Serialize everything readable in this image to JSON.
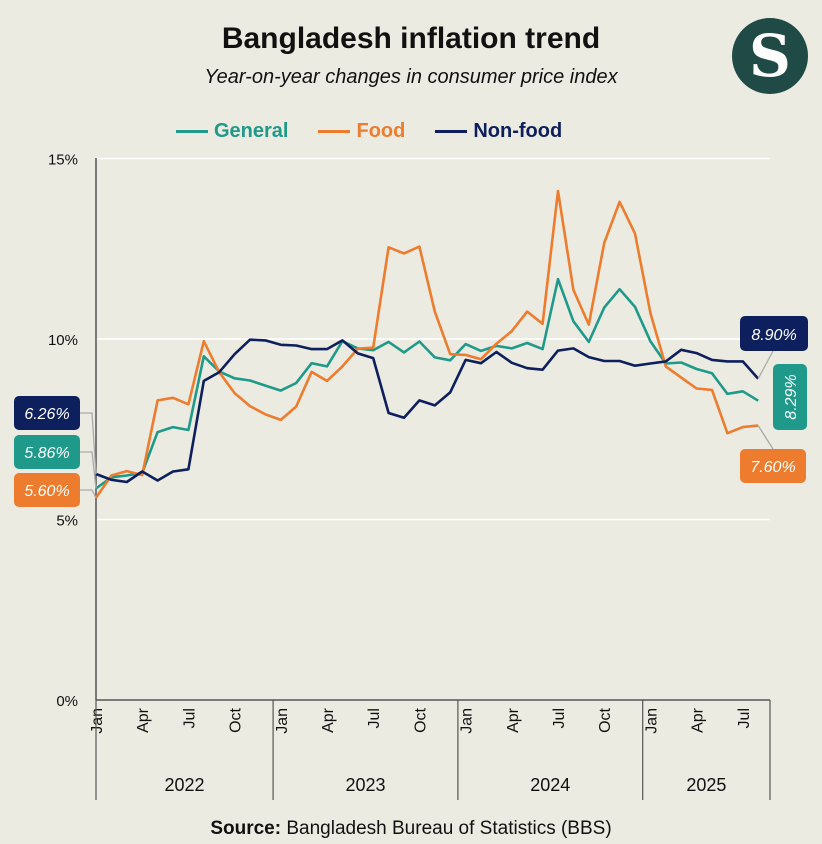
{
  "title": "Bangladesh inflation trend",
  "subtitle": "Year-on-year changes in consumer price index",
  "logo": {
    "letter": "S"
  },
  "source": {
    "label": "Source:",
    "text": "Bangladesh Bureau of Statistics (BBS)"
  },
  "colors": {
    "general": "#1f9a8a",
    "food": "#ee7c2e",
    "nonfood": "#0d1f5c",
    "background": "#ecebe1"
  },
  "chart_data": {
    "type": "line",
    "ylim": [
      0,
      15
    ],
    "yticks": [
      0,
      5,
      10,
      15
    ],
    "ytick_labels": [
      "0%",
      "5%",
      "10%",
      "15%"
    ],
    "xticks": [
      {
        "i": 0,
        "label": "Jan"
      },
      {
        "i": 3,
        "label": "Apr"
      },
      {
        "i": 6,
        "label": "Jul"
      },
      {
        "i": 9,
        "label": "Oct"
      },
      {
        "i": 12,
        "label": "Jan"
      },
      {
        "i": 15,
        "label": "Apr"
      },
      {
        "i": 18,
        "label": "Jul"
      },
      {
        "i": 21,
        "label": "Oct"
      },
      {
        "i": 24,
        "label": "Jan"
      },
      {
        "i": 27,
        "label": "Apr"
      },
      {
        "i": 30,
        "label": "Jul"
      },
      {
        "i": 33,
        "label": "Oct"
      },
      {
        "i": 36,
        "label": "Jan"
      },
      {
        "i": 39,
        "label": "Apr"
      },
      {
        "i": 42,
        "label": "Jul"
      }
    ],
    "years": [
      {
        "label": "2022",
        "start": 0,
        "end": 11
      },
      {
        "label": "2023",
        "start": 12,
        "end": 23
      },
      {
        "label": "2024",
        "start": 24,
        "end": 35
      },
      {
        "label": "2025",
        "start": 36,
        "end": 43
      }
    ],
    "series": [
      {
        "name": "General",
        "key": "general",
        "values": [
          5.86,
          6.17,
          6.22,
          6.29,
          7.42,
          7.56,
          7.48,
          9.52,
          9.1,
          8.91,
          8.85,
          8.71,
          8.57,
          8.78,
          9.33,
          9.24,
          9.94,
          9.74,
          9.69,
          9.92,
          9.63,
          9.93,
          9.49,
          9.41,
          9.86,
          9.67,
          9.81,
          9.74,
          9.89,
          9.72,
          11.66,
          10.49,
          9.92,
          10.87,
          11.38,
          10.89,
          9.94,
          9.32,
          9.35,
          9.17,
          9.05,
          8.48,
          8.55,
          8.29
        ]
      },
      {
        "name": "Food",
        "key": "food",
        "values": [
          5.6,
          6.22,
          6.34,
          6.23,
          8.3,
          8.37,
          8.19,
          9.94,
          9.08,
          8.5,
          8.14,
          7.91,
          7.76,
          8.13,
          9.09,
          8.84,
          9.24,
          9.73,
          9.76,
          12.54,
          12.37,
          12.56,
          10.76,
          9.58,
          9.56,
          9.44,
          9.87,
          10.22,
          10.76,
          10.42,
          14.1,
          11.36,
          10.4,
          12.66,
          13.8,
          12.92,
          10.72,
          9.24,
          8.93,
          8.63,
          8.59,
          7.39,
          7.56,
          7.6
        ]
      },
      {
        "name": "Non-food",
        "key": "nonfood",
        "values": [
          6.26,
          6.1,
          6.04,
          6.33,
          6.08,
          6.33,
          6.39,
          8.84,
          9.08,
          9.58,
          9.98,
          9.96,
          9.84,
          9.82,
          9.72,
          9.72,
          9.96,
          9.6,
          9.47,
          7.95,
          7.82,
          8.3,
          8.16,
          8.52,
          9.42,
          9.33,
          9.64,
          9.34,
          9.19,
          9.15,
          9.68,
          9.74,
          9.5,
          9.39,
          9.39,
          9.26,
          9.32,
          9.38,
          9.7,
          9.61,
          9.42,
          9.38,
          9.38,
          8.9
        ]
      }
    ],
    "start_labels": [
      {
        "key": "nonfood",
        "text": "6.26%"
      },
      {
        "key": "general",
        "text": "5.86%"
      },
      {
        "key": "food",
        "text": "5.60%"
      }
    ],
    "end_labels": [
      {
        "key": "nonfood",
        "text": "8.90%"
      },
      {
        "key": "general",
        "text": "8.29%"
      },
      {
        "key": "food",
        "text": "7.60%"
      }
    ]
  }
}
